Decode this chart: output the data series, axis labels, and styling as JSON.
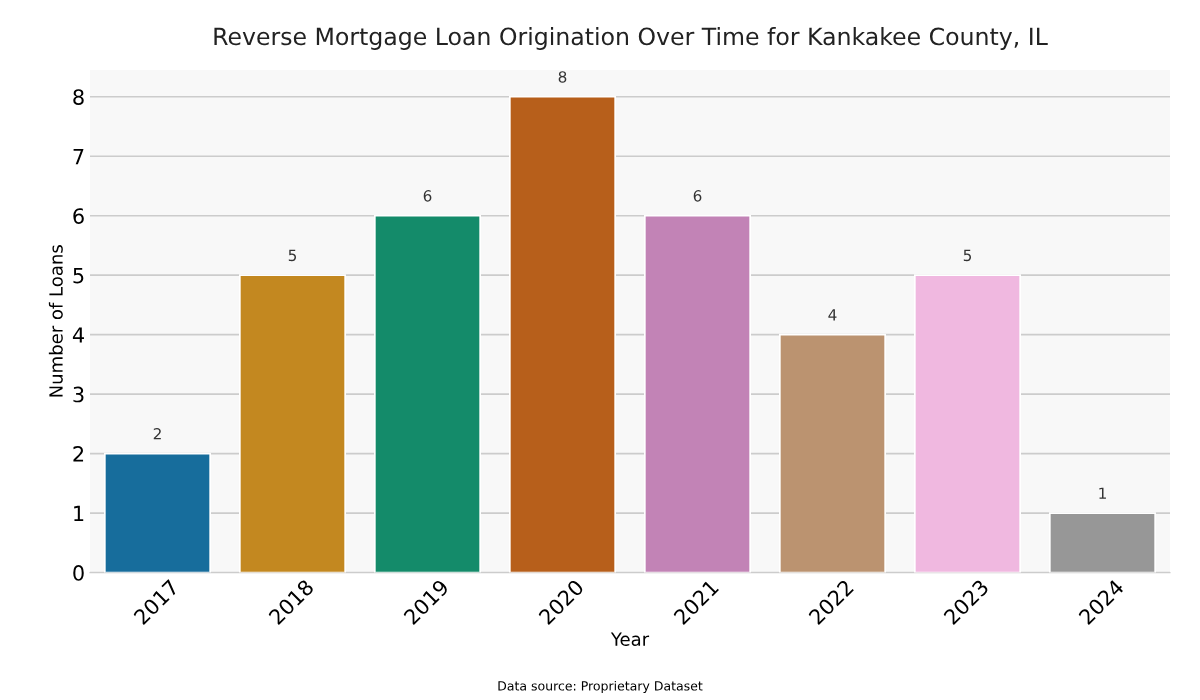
{
  "chart_data": {
    "type": "bar",
    "title": "Reverse Mortgage Loan Origination Over Time for Kankakee County, IL",
    "xlabel": "Year",
    "ylabel": "Number of Loans",
    "categories": [
      "2017",
      "2018",
      "2019",
      "2020",
      "2021",
      "2022",
      "2023",
      "2024"
    ],
    "values": [
      2,
      5,
      6,
      8,
      6,
      4,
      5,
      1
    ],
    "colors": [
      "#176d9c",
      "#c38820",
      "#148b6a",
      "#b75f1b",
      "#c283b6",
      "#bb9370",
      "#f0b8e0",
      "#979797"
    ],
    "ylim": [
      0,
      8.45
    ],
    "yticks": [
      0,
      1,
      2,
      3,
      4,
      5,
      6,
      7,
      8
    ],
    "grid": "y",
    "data_labels": true,
    "annotations": [
      "Data source: Proprietary Dataset"
    ]
  }
}
